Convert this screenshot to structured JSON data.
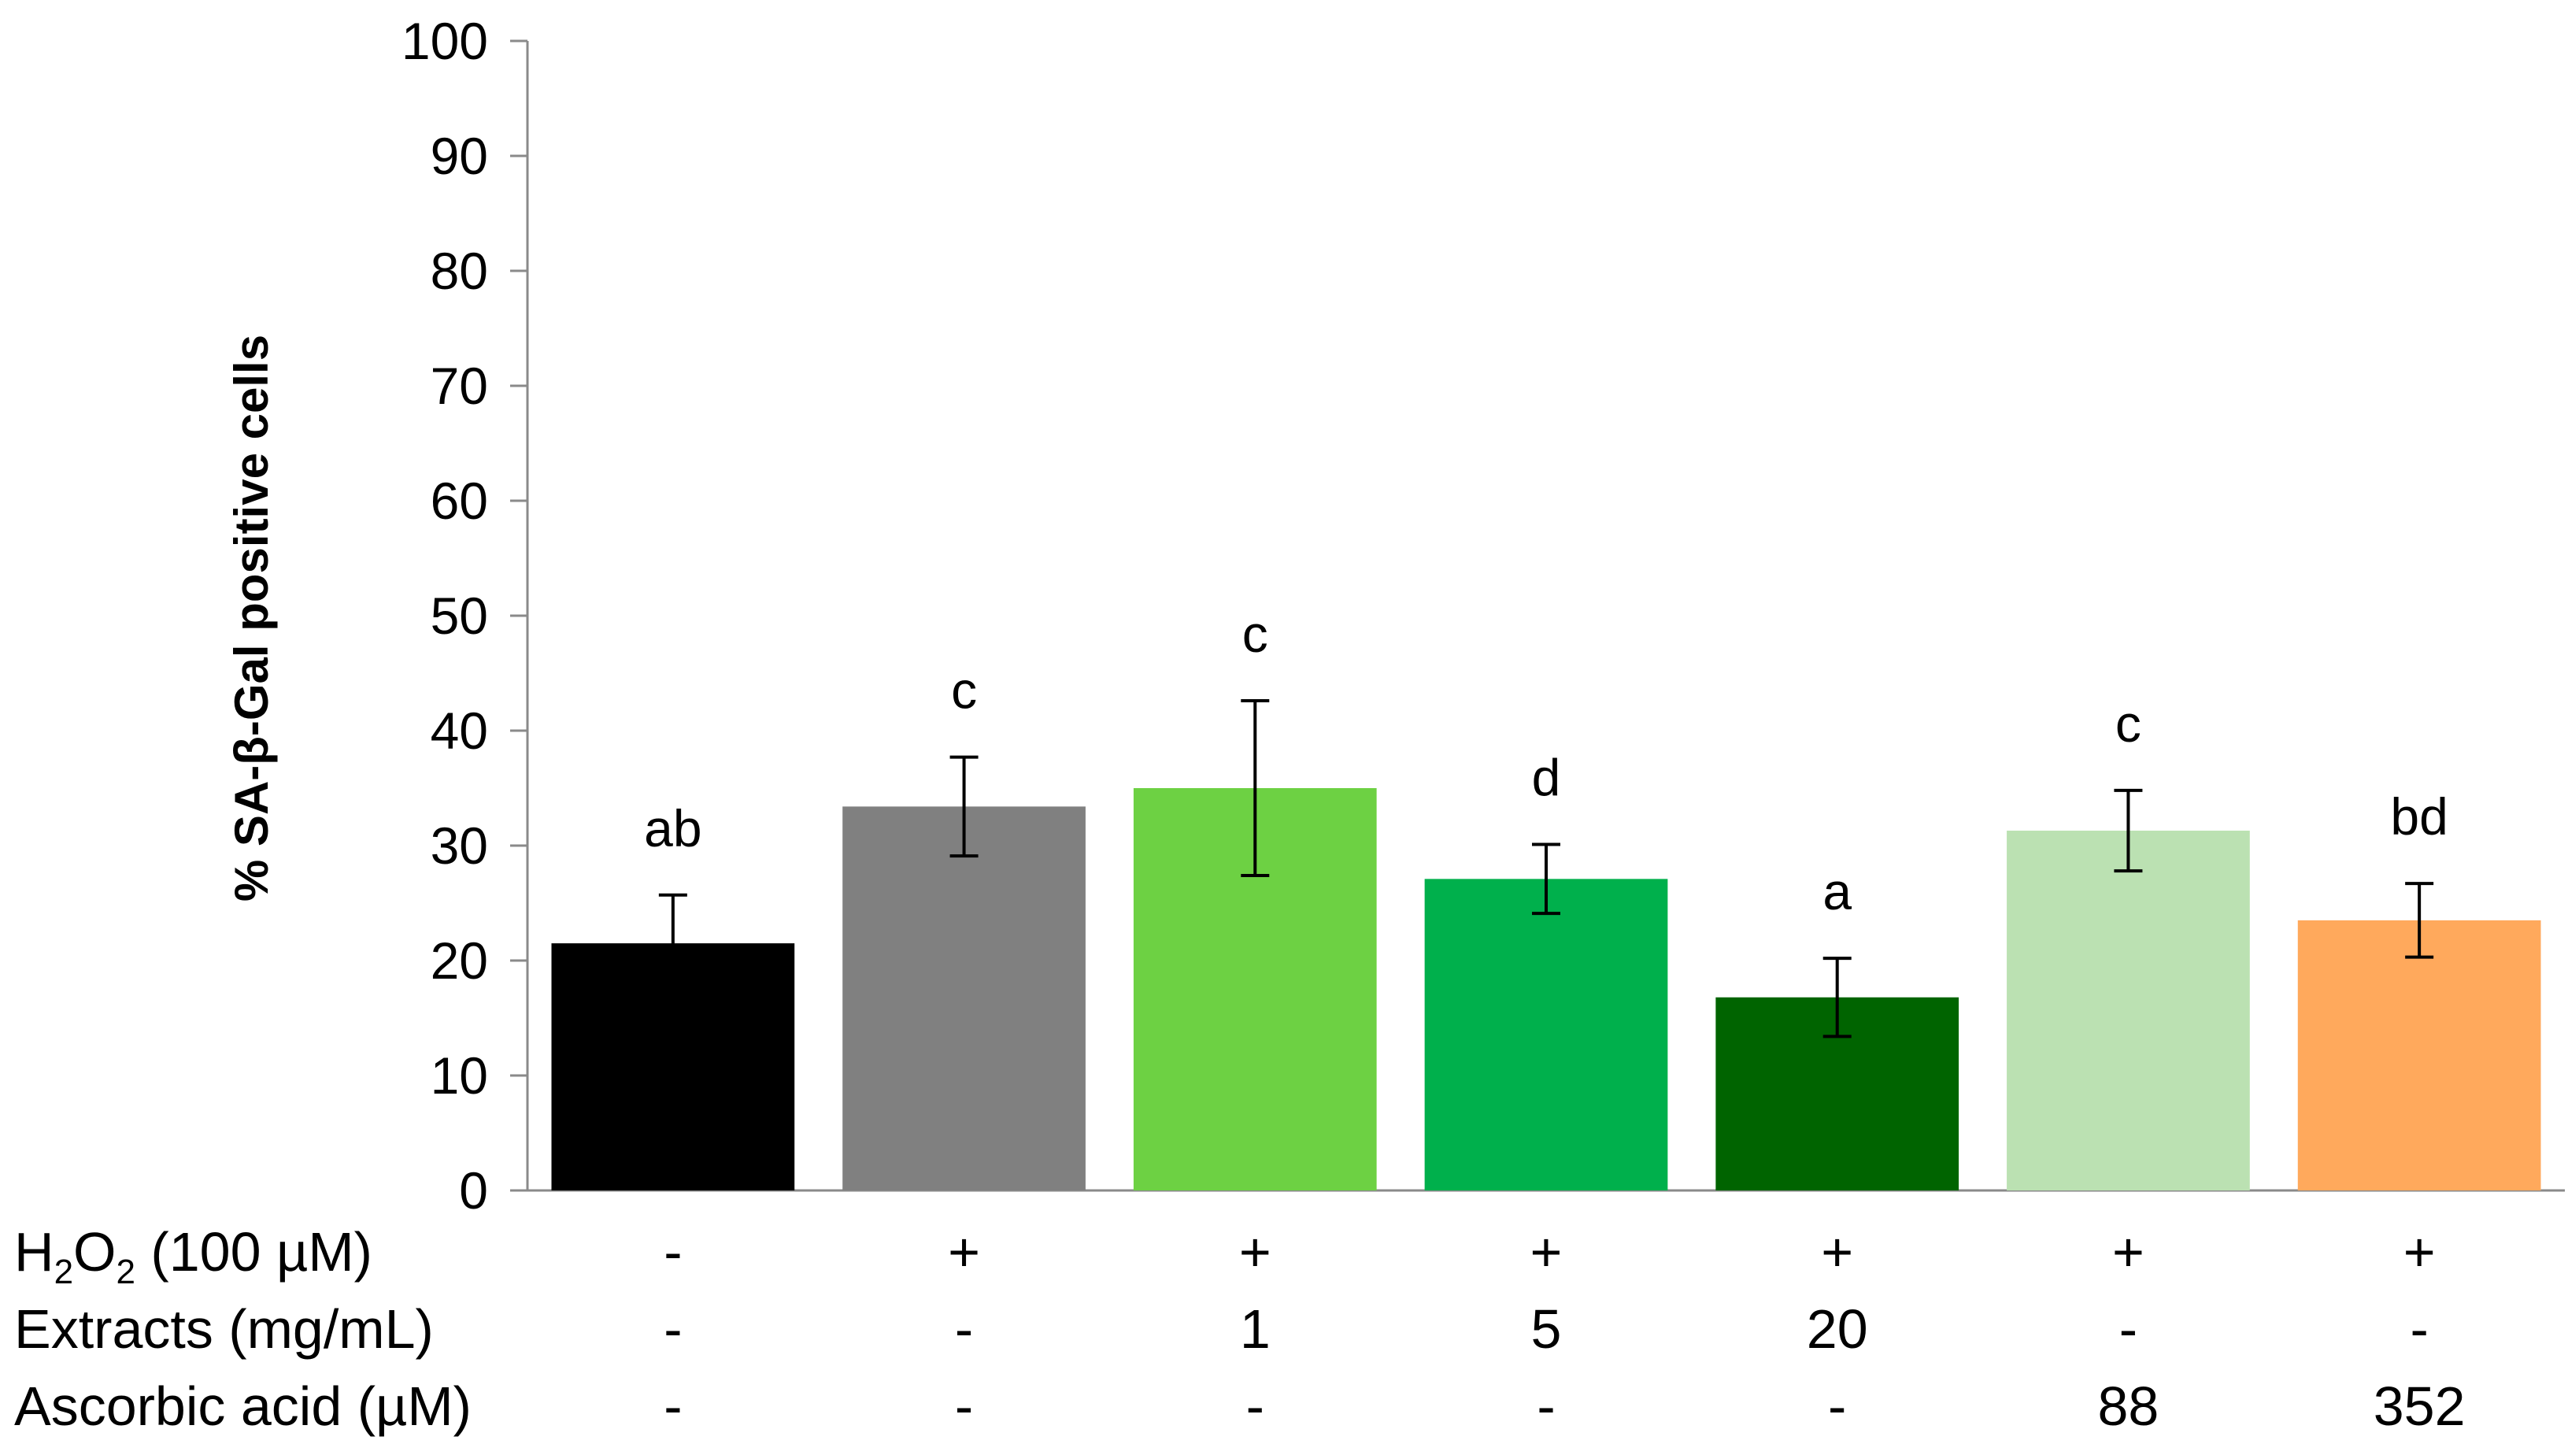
{
  "chart_data": {
    "type": "bar",
    "ylabel": "% SA-β-Gal positive cells",
    "ylim": [
      0,
      100
    ],
    "yticks": [
      0,
      10,
      20,
      30,
      40,
      50,
      60,
      70,
      80,
      90,
      100
    ],
    "grid": false,
    "values": [
      21.5,
      33.4,
      35.0,
      27.1,
      16.8,
      31.3,
      23.5
    ],
    "errors": [
      4.2,
      4.3,
      7.6,
      3.0,
      3.4,
      3.5,
      3.2
    ],
    "significance": [
      "ab",
      "c",
      "c",
      "d",
      "a",
      "c",
      "bd"
    ],
    "colors": [
      "#000000",
      "#808080",
      "#6dd143",
      "#00b04c",
      "#006400",
      "#bbe1b2",
      "#ffa95c"
    ],
    "conditions": [
      {
        "label": "H2O2 (100 µM)",
        "values": [
          "-",
          "+",
          "+",
          "+",
          "+",
          "+",
          "+"
        ]
      },
      {
        "label": "Extracts (mg/mL)",
        "values": [
          "-",
          "-",
          "1",
          "5",
          "20",
          "-",
          "-"
        ]
      },
      {
        "label": "Ascorbic acid (µM)",
        "values": [
          "-",
          "-",
          "-",
          "-",
          "-",
          "88",
          "352"
        ]
      }
    ]
  }
}
